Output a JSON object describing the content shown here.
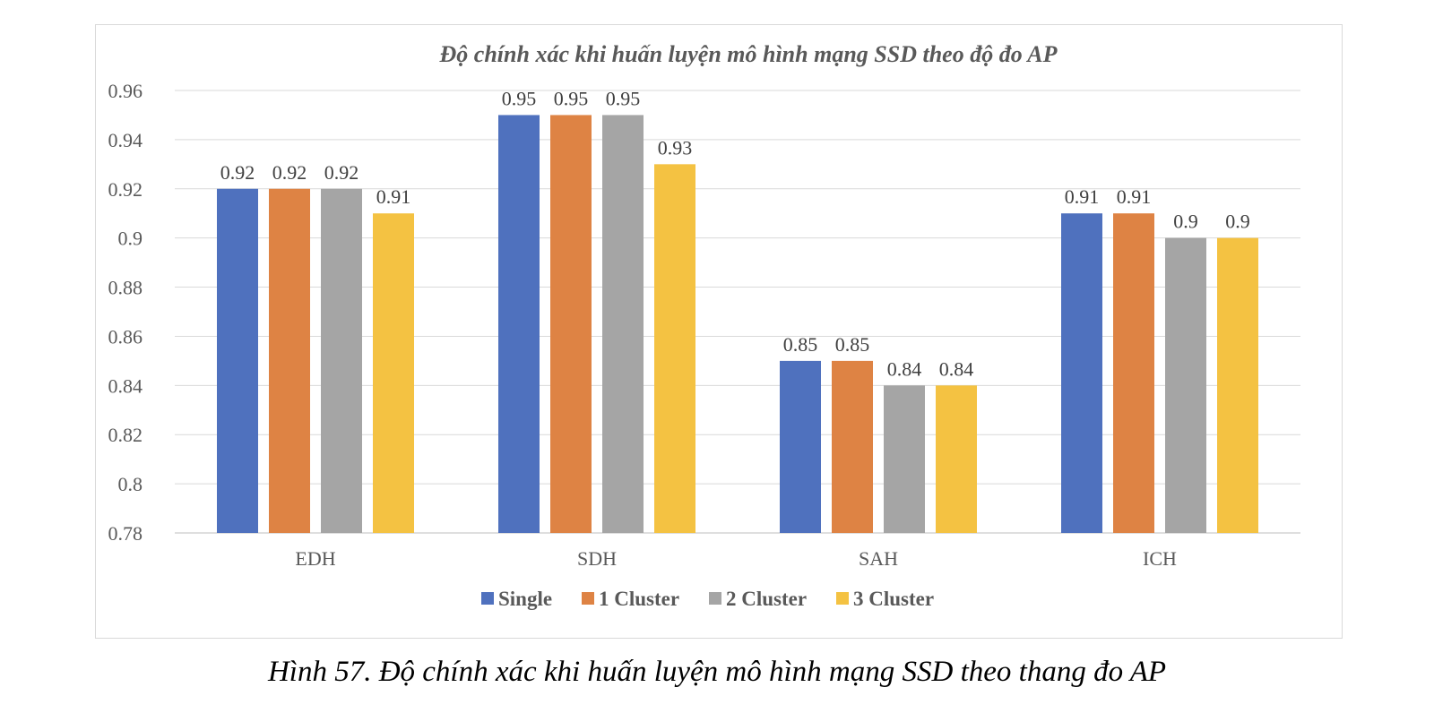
{
  "chart_data": {
    "type": "bar",
    "title": "Độ chính xác khi huấn luyện mô hình mạng SSD theo độ đo AP",
    "categories": [
      "EDH",
      "SDH",
      "SAH",
      "ICH"
    ],
    "series": [
      {
        "name": "Single",
        "color": "#4F71BE",
        "values": [
          0.92,
          0.95,
          0.85,
          0.91
        ],
        "labels": [
          "0.92",
          "0.95",
          "0.85",
          "0.91"
        ]
      },
      {
        "name": "1 Cluster",
        "color": "#DE8344",
        "values": [
          0.92,
          0.95,
          0.85,
          0.91
        ],
        "labels": [
          "0.92",
          "0.95",
          "0.85",
          "0.91"
        ]
      },
      {
        "name": "2 Cluster",
        "color": "#A5A5A5",
        "values": [
          0.92,
          0.95,
          0.84,
          0.9
        ],
        "labels": [
          "0.92",
          "0.95",
          "0.84",
          "0.9"
        ]
      },
      {
        "name": "3 Cluster",
        "color": "#F4C242",
        "values": [
          0.91,
          0.93,
          0.84,
          0.9
        ],
        "labels": [
          "0.91",
          "0.93",
          "0.84",
          "0.9"
        ]
      }
    ],
    "ylim": [
      0.78,
      0.96
    ],
    "yticks": [
      "0.78",
      "0.8",
      "0.82",
      "0.84",
      "0.86",
      "0.88",
      "0.9",
      "0.92",
      "0.94",
      "0.96"
    ],
    "grid": true,
    "legend": "bottom"
  },
  "caption": "Hình 57. Độ chính xác khi huấn luyện mô hình mạng SSD theo thang đo AP"
}
